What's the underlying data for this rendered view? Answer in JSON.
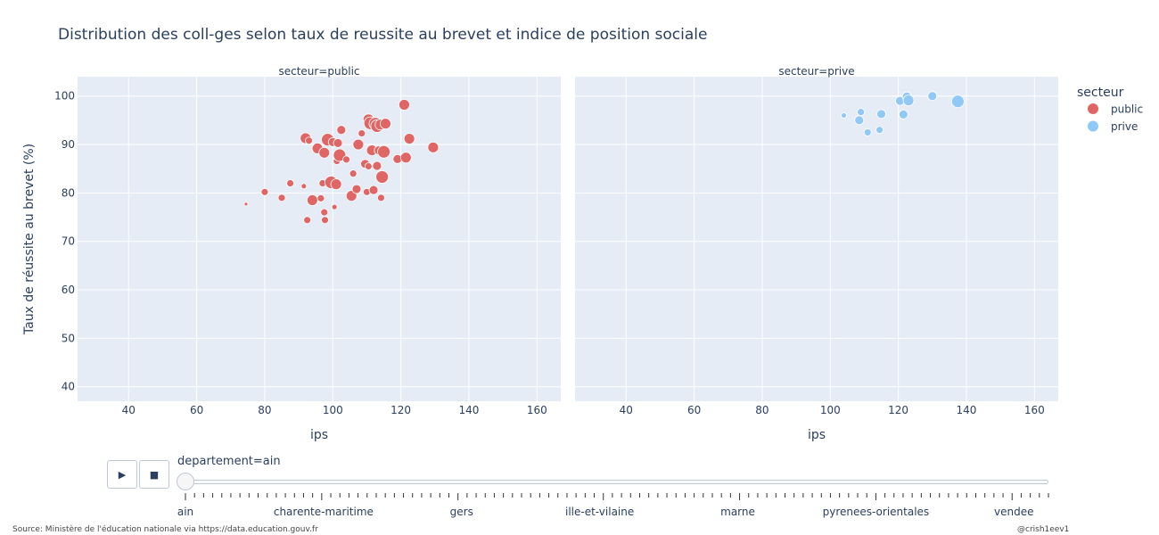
{
  "title": "Distribution des coll-ges selon taux de reussite au brevet et indice de position sociale",
  "colors": {
    "public": "#e06666",
    "prive": "#90c8f6",
    "plot_bg": "#e5ecf6",
    "grid": "#ffffff"
  },
  "chart_data": {
    "type": "scatter",
    "xlabel": "ips",
    "ylabel": "Taux de réussite au brevet (%)",
    "xlim": [
      25,
      167
    ],
    "ylim": [
      37,
      104
    ],
    "xticks": [
      "40",
      "60",
      "80",
      "100",
      "120",
      "140",
      "160"
    ],
    "yticks": [
      "40",
      "50",
      "60",
      "70",
      "80",
      "90",
      "100"
    ],
    "grid": true,
    "legend": {
      "title": "secteur",
      "entries": [
        "public",
        "prive"
      ],
      "placement": "right"
    },
    "panels": [
      {
        "facet_label": "secteur=public",
        "series": "public"
      },
      {
        "facet_label": "secteur=prive",
        "series": "prive"
      }
    ],
    "series": [
      {
        "name": "public",
        "color": "#e06666",
        "points": [
          {
            "x": 74.5,
            "y": 77.7,
            "s": 2
          },
          {
            "x": 80,
            "y": 80.2,
            "s": 4
          },
          {
            "x": 85,
            "y": 79,
            "s": 4
          },
          {
            "x": 87.5,
            "y": 82,
            "s": 4
          },
          {
            "x": 91.5,
            "y": 81.4,
            "s": 3
          },
          {
            "x": 92,
            "y": 91.3,
            "s": 6
          },
          {
            "x": 92.5,
            "y": 74.4,
            "s": 4
          },
          {
            "x": 93,
            "y": 90.8,
            "s": 4
          },
          {
            "x": 94,
            "y": 78.5,
            "s": 6
          },
          {
            "x": 95.5,
            "y": 89.2,
            "s": 6
          },
          {
            "x": 96.5,
            "y": 78.9,
            "s": 4
          },
          {
            "x": 97,
            "y": 82,
            "s": 4
          },
          {
            "x": 97.5,
            "y": 88.3,
            "s": 6
          },
          {
            "x": 97.5,
            "y": 76,
            "s": 4
          },
          {
            "x": 97.7,
            "y": 74.4,
            "s": 4
          },
          {
            "x": 98.5,
            "y": 91,
            "s": 7
          },
          {
            "x": 99.5,
            "y": 82.2,
            "s": 7
          },
          {
            "x": 100,
            "y": 90.5,
            "s": 5
          },
          {
            "x": 100.5,
            "y": 77.1,
            "s": 3
          },
          {
            "x": 101,
            "y": 81.8,
            "s": 6
          },
          {
            "x": 101.2,
            "y": 86.6,
            "s": 4
          },
          {
            "x": 101.5,
            "y": 90.3,
            "s": 5
          },
          {
            "x": 102,
            "y": 87.8,
            "s": 7
          },
          {
            "x": 102.5,
            "y": 93,
            "s": 5
          },
          {
            "x": 104,
            "y": 86.9,
            "s": 4
          },
          {
            "x": 105.5,
            "y": 79.4,
            "s": 6
          },
          {
            "x": 106,
            "y": 84,
            "s": 4
          },
          {
            "x": 107,
            "y": 80.8,
            "s": 5
          },
          {
            "x": 107.5,
            "y": 90,
            "s": 6
          },
          {
            "x": 108.5,
            "y": 92.3,
            "s": 4
          },
          {
            "x": 109.5,
            "y": 86,
            "s": 5
          },
          {
            "x": 110,
            "y": 80.2,
            "s": 4
          },
          {
            "x": 110.5,
            "y": 85.5,
            "s": 4
          },
          {
            "x": 110.5,
            "y": 95.2,
            "s": 6
          },
          {
            "x": 111,
            "y": 94.4,
            "s": 7
          },
          {
            "x": 111.5,
            "y": 88.8,
            "s": 6
          },
          {
            "x": 112,
            "y": 80.6,
            "s": 5
          },
          {
            "x": 112.5,
            "y": 94.3,
            "s": 7
          },
          {
            "x": 113,
            "y": 85.6,
            "s": 5
          },
          {
            "x": 113,
            "y": 93.8,
            "s": 7
          },
          {
            "x": 113.5,
            "y": 88.8,
            "s": 5
          },
          {
            "x": 114,
            "y": 94.1,
            "s": 6
          },
          {
            "x": 114.2,
            "y": 79,
            "s": 4
          },
          {
            "x": 114.5,
            "y": 83.3,
            "s": 7
          },
          {
            "x": 115,
            "y": 88.5,
            "s": 7
          },
          {
            "x": 115.5,
            "y": 94.3,
            "s": 6
          },
          {
            "x": 119,
            "y": 87,
            "s": 5
          },
          {
            "x": 121,
            "y": 98.2,
            "s": 6
          },
          {
            "x": 121.5,
            "y": 87.3,
            "s": 6
          },
          {
            "x": 122.5,
            "y": 91.2,
            "s": 6
          },
          {
            "x": 129.5,
            "y": 89.4,
            "s": 6
          }
        ]
      },
      {
        "name": "prive",
        "color": "#90c8f6",
        "points": [
          {
            "x": 104,
            "y": 96,
            "s": 3
          },
          {
            "x": 108.5,
            "y": 95,
            "s": 5
          },
          {
            "x": 109,
            "y": 96.7,
            "s": 4
          },
          {
            "x": 111,
            "y": 92.5,
            "s": 4
          },
          {
            "x": 114.5,
            "y": 93,
            "s": 4
          },
          {
            "x": 115,
            "y": 96.3,
            "s": 5
          },
          {
            "x": 120.5,
            "y": 99,
            "s": 5
          },
          {
            "x": 121.5,
            "y": 96.2,
            "s": 5
          },
          {
            "x": 122.5,
            "y": 99.9,
            "s": 5
          },
          {
            "x": 123,
            "y": 99.1,
            "s": 6
          },
          {
            "x": 130,
            "y": 100,
            "s": 5
          },
          {
            "x": 137.5,
            "y": 98.9,
            "s": 7
          }
        ]
      }
    ]
  },
  "controls": {
    "play_icon": "play-icon",
    "stop_icon": "stop-icon"
  },
  "slider": {
    "current_label": "departement=ain",
    "current_index": 0,
    "labels": [
      "ain",
      "charente-maritime",
      "gers",
      "ille-et-vilaine",
      "marne",
      "pyrenees-orientales",
      "vendee"
    ],
    "label_positions": [
      0,
      0.16,
      0.32,
      0.48,
      0.64,
      0.8,
      0.96
    ],
    "tick_count": 96
  },
  "footer": {
    "source": "Source: Ministère de l'éducation nationale via https://data.education.gouv.fr",
    "credit": "@crish1eev1"
  }
}
